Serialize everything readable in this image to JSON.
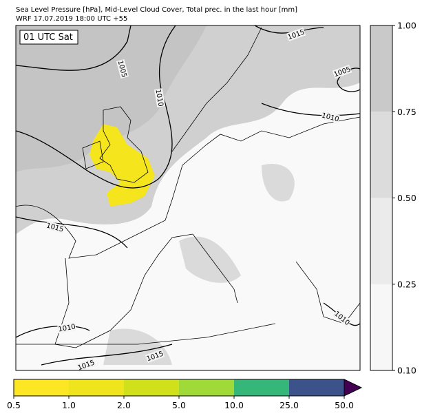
{
  "header": {
    "title": "Sea Level Pressure [hPa], Mid-Level Cloud Cover, Total prec. in the last hour [mm]",
    "subtitle": "WRF 17.07.2019 18:00 UTC +55"
  },
  "map": {
    "time_label": "01 UTC Sat",
    "isobar_labels": [
      1015,
      1005,
      1010,
      1005,
      1010,
      1015,
      1010,
      1015,
      1015,
      1010
    ]
  },
  "cloud_colorbar": {
    "colors": [
      "#f7f7f7",
      "#ebebeb",
      "#dcdcdc",
      "#c9c9c9"
    ],
    "ticks": [
      {
        "value": 0.1,
        "label": "0.10"
      },
      {
        "value": 0.25,
        "label": "0.25"
      },
      {
        "value": 0.5,
        "label": "0.50"
      },
      {
        "value": 0.75,
        "label": "0.75"
      },
      {
        "value": 1,
        "label": "1.00"
      }
    ]
  },
  "precip_colorbar": {
    "colors": [
      "#fde725",
      "#efe51c",
      "#d0e11c",
      "#a0da39",
      "#35b779",
      "#3b528b"
    ],
    "extend_color": "#440154",
    "ticks": [
      0.5,
      {
        "value": 1,
        "label": "1.0"
      },
      {
        "value": 2,
        "label": "2.0"
      },
      {
        "value": 5,
        "label": "5.0"
      },
      {
        "value": 10,
        "label": "10.0"
      },
      {
        "value": 25,
        "label": "25.0"
      },
      {
        "value": 50,
        "label": "50.0"
      }
    ]
  }
}
